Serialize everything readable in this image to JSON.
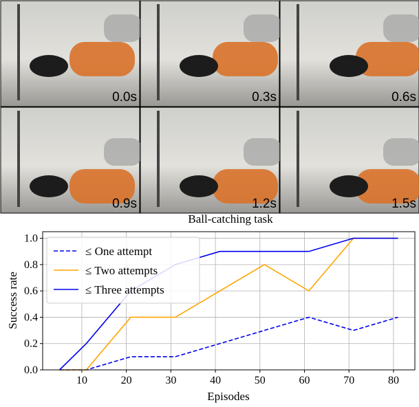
{
  "panels": [
    "0.0s",
    "0.3s",
    "0.6s",
    "0.9s",
    "1.2s",
    "1.5s"
  ],
  "chart_data": {
    "type": "line",
    "title": "Ball-catching task",
    "x_label": "Episodes",
    "y_label": "Success rate",
    "x": [
      5,
      11,
      21,
      31,
      41,
      51,
      61,
      71,
      81
    ],
    "series": [
      {
        "name": "≤ One attempt",
        "color": "#0000ee",
        "style": "dashed",
        "values": [
          0,
          0,
          0.1,
          0.1,
          0.2,
          0.3,
          0.4,
          0.3,
          0.4
        ]
      },
      {
        "name": "≤ Two attempts",
        "color": "#ffa500",
        "style": "solid",
        "values": [
          0,
          0,
          0.4,
          0.4,
          0.6,
          0.8,
          0.6,
          1.0,
          1.0
        ]
      },
      {
        "name": "≤ Three attempts",
        "color": "#0000ee",
        "style": "solid",
        "values": [
          0,
          0.2,
          0.6,
          0.8,
          0.9,
          0.9,
          0.9,
          1.0,
          1.0
        ]
      }
    ],
    "xlim": [
      1.2,
      84.8
    ],
    "xticks": [
      10,
      20,
      30,
      40,
      50,
      60,
      70,
      80
    ],
    "ylim": [
      0,
      1.05
    ],
    "yticks": [
      {
        "value": 0,
        "label": "0.0"
      },
      {
        "value": 0.2,
        "label": "0.2"
      },
      {
        "value": 0.4,
        "label": "0.4"
      },
      {
        "value": 0.6,
        "label": "0.6"
      },
      {
        "value": 0.8,
        "label": "0.8"
      },
      {
        "value": 1,
        "label": "1.0"
      }
    ],
    "grid": true,
    "legend": "upper-left"
  }
}
